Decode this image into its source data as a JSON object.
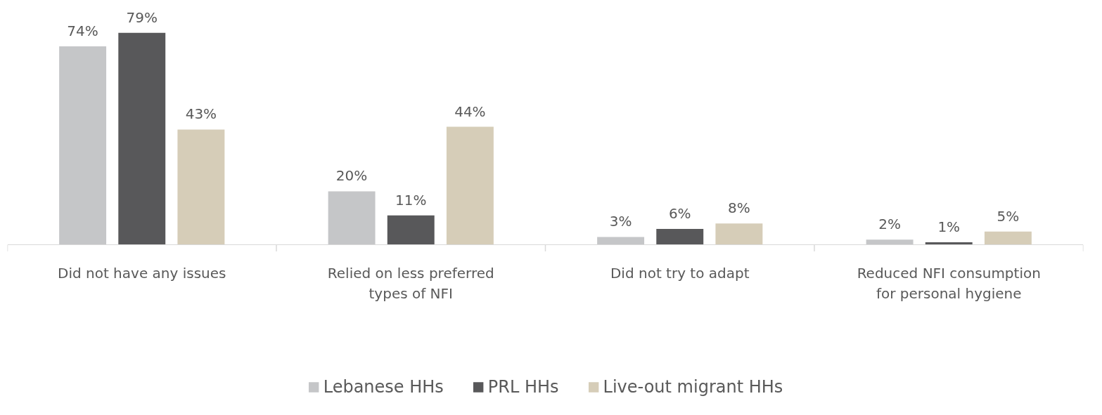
{
  "chart_data": {
    "type": "bar",
    "categories": [
      "Did not have any issues",
      "Relied on less preferred types of NFI",
      "Did not try to adapt",
      "Reduced NFI consumption for personal hygiene"
    ],
    "series": [
      {
        "name": "Lebanese HHs",
        "color": "#c5c6c8",
        "values": [
          74,
          20,
          3,
          2
        ],
        "value_labels": [
          "74%",
          "20%",
          "3%",
          "2%"
        ]
      },
      {
        "name": "PRL HHs",
        "color": "#58585a",
        "values": [
          79,
          11,
          6,
          1
        ],
        "value_labels": [
          "79%",
          "11%",
          "6%",
          "1%"
        ]
      },
      {
        "name": "Live-out migrant HHs",
        "color": "#d6cdb8",
        "values": [
          43,
          44,
          8,
          5
        ],
        "value_labels": [
          "43%",
          "44%",
          "8%",
          "5%"
        ]
      }
    ],
    "legend": "bottom"
  }
}
